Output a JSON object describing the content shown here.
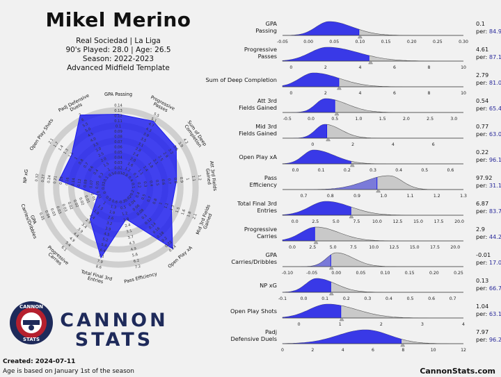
{
  "header": {
    "name": "Mikel Merino",
    "club": "Real Sociedad | La Liga",
    "played": "90's Played: 28.0 | Age: 26.5",
    "season": "Season: 2022-2023",
    "template": "Advanced Midfield Template"
  },
  "brand": {
    "line1": "CANNON",
    "line2": "STATS",
    "logo_top": "CANNON",
    "logo_bottom": "STATS"
  },
  "footer": {
    "created": "Created: 2024-07-11",
    "age_note": "Age is based on January 1st of the season",
    "site": "CannonStats.com"
  },
  "colors": {
    "player_fill": "#1a1aee",
    "dist_grey": "#c9c9c9",
    "per_text": "#2a2a9a",
    "ring": "#cfcfcf",
    "brand_navy": "#1e2a5a",
    "brand_red": "#b5202e"
  },
  "chart_data": [
    {
      "type": "radar",
      "axes": [
        "GPA Passing",
        "Progressive Passes",
        "Sum of Deep Completion",
        "Att 3rd Fields Gained",
        "Mid 3rd Fields Gained",
        "Open Play xA",
        "Pass Efficiency",
        "Total Final 3rd Entries",
        "Progressive Carries",
        "GPA Carries/Dribbles",
        "NP xG",
        "Open Play Shots",
        "Padj Defensive Duels"
      ],
      "axis_labels": [
        "GPA Passing",
        "Progressive\nPasses",
        "Sum of Deep\nCompletion",
        "Att 3rd Fields\nGained",
        "Mid 3rd Fields\nGained",
        "Open Play xA",
        "Pass Efficiency",
        "Total Final 3rd\nEntries",
        "Progressive\nCarries",
        "GPA\nCarries/Dribbles",
        "NP xG",
        "Open Play Shots",
        "Padj Defensive\nDuels"
      ],
      "percentiles": [
        84.9,
        87.1,
        81.0,
        65.4,
        63.0,
        96.1,
        31.1,
        83.7,
        44.2,
        17.0,
        66.7,
        63.1,
        96.2
      ],
      "ticks": [
        [
          "0.01",
          "0.02",
          "0.03",
          "0.04",
          "0.05",
          "0.06",
          "0.07",
          "0.08",
          "0.09",
          "0.1",
          "0.11",
          "0.12",
          "0.13",
          "0.14"
        ],
        [
          "0.8",
          "1.2",
          "1.6",
          "2.0",
          "2.4",
          "2.8",
          "3.1",
          "3.5",
          "3.9",
          "4.3",
          "4.7",
          "5.1",
          "5.5"
        ],
        [
          "0.4",
          "0.7",
          "1.1",
          "1.4",
          "1.8",
          "2.1",
          "2.5",
          "2.9",
          "3.2",
          "3.6",
          "3.9",
          "4.2"
        ],
        [
          "0.1",
          "0.2",
          "0.3",
          "0.4",
          "0.5",
          "0.6",
          "0.7",
          "0.8",
          "0.9",
          "1",
          "1.1",
          "1.2"
        ],
        [
          "0.2",
          "0.4",
          "0.5",
          "0.7",
          "0.8",
          "1",
          "1.1",
          "1.3",
          "1.5",
          "1.6",
          "1.8",
          "2.1"
        ],
        [
          "0.02",
          "0.04",
          "0.06",
          "0.08",
          "0.1",
          "0.12",
          "0.14",
          "0.16",
          "0.18",
          "0.2",
          "0.22",
          "0.24"
        ],
        [
          "-0.1",
          "0.5",
          "1.2",
          "1.8",
          "2.4",
          "3.1",
          "3.7",
          "4.3",
          "4.9",
          "5.6",
          "6.2",
          "7.2"
        ],
        [
          "0.6",
          "1.3",
          "1.9",
          "2.6",
          "3.2",
          "3.9",
          "4.5",
          "5.2",
          "5.8",
          "6.4",
          "7.1",
          "7.9",
          "8.6"
        ],
        [
          "0.5",
          "1",
          "1.5",
          "1.9",
          "2.4",
          "2.9",
          "3.4",
          "3.9",
          "4.4",
          "4.9",
          "5.4",
          "6.1"
        ],
        [
          "0",
          "0.01",
          "0.01",
          "0.01",
          "0.02",
          "0.02",
          "0.02",
          "0.03",
          "0.03",
          "0.03",
          "0.04",
          "0.05"
        ],
        [
          "0.02",
          "0.05",
          "0.07",
          "0.09",
          "0.12",
          "0.14",
          "0.16",
          "0.19",
          "0.21",
          "0.24",
          "0.27",
          "0.32"
        ],
        [
          "0.1",
          "0.3",
          "0.4",
          "0.6",
          "0.7",
          "0.8",
          "1",
          "1.1",
          "1.3",
          "1.4",
          "1.7",
          "2.1"
        ],
        [
          "0.5",
          "1",
          "1.5",
          "2.0",
          "2.5",
          "3.0",
          "3.5",
          "4.0",
          "4.5",
          "5.0",
          "5.5",
          "6",
          "7"
        ]
      ]
    },
    {
      "type": "area",
      "metrics": [
        {
          "label": "GPA\nPassing",
          "value": "0.1",
          "per": "per: 84.9",
          "xmin": -0.05,
          "xmax": 0.3,
          "ticks": [
            "-0.05",
            "0.00",
            "0.05",
            "0.10",
            "0.15",
            "0.20",
            "0.25",
            "0.30"
          ],
          "tickvals": [
            -0.05,
            0,
            0.05,
            0.1,
            0.15,
            0.2,
            0.25,
            0.3
          ],
          "mode": 0.04,
          "sl": 0.025,
          "sr": 0.045,
          "marker": 0.1
        },
        {
          "label": "Progressive\nPasses",
          "value": "4.61",
          "per": "per: 87.1",
          "xmin": -0.5,
          "xmax": 10,
          "ticks": [
            "0",
            "2",
            "4",
            "6",
            "8",
            "10"
          ],
          "tickvals": [
            0,
            2,
            4,
            6,
            8,
            10
          ],
          "mode": 2.1,
          "sl": 1.0,
          "sr": 1.8,
          "marker": 4.61
        },
        {
          "label": "Sum of Deep Completion",
          "value": "2.79",
          "per": "per: 81.0",
          "xmin": -0.5,
          "xmax": 10,
          "ticks": [
            "0",
            "2",
            "4",
            "6",
            "8",
            "10"
          ],
          "tickvals": [
            0,
            2,
            4,
            6,
            8,
            10
          ],
          "mode": 1.3,
          "sl": 0.8,
          "sr": 1.5,
          "marker": 2.79
        },
        {
          "label": "Att 3rd\nFields Gained",
          "value": "0.54",
          "per": "per: 65.4",
          "xmin": -0.6,
          "xmax": 3.2,
          "ticks": [
            "-0.5",
            "0.0",
            "0.5",
            "1.0",
            "1.5",
            "2.0",
            "2.5",
            "3.0"
          ],
          "tickvals": [
            -0.5,
            0,
            0.5,
            1,
            1.5,
            2,
            2.5,
            3
          ],
          "mode": 0.3,
          "sl": 0.2,
          "sr": 0.45,
          "marker": 0.54
        },
        {
          "label": "Mid 3rd\nFields Gained",
          "value": "0.77",
          "per": "per: 63.0",
          "xmin": -1.5,
          "xmax": 7.5,
          "ticks": [
            "0",
            "2",
            "4",
            "6"
          ],
          "tickvals": [
            0,
            2,
            4,
            6
          ],
          "mode": 0.6,
          "sl": 0.45,
          "sr": 0.8,
          "marker": 0.77
        },
        {
          "label": "Open Play xA",
          "value": "0.22",
          "per": "per: 96.1",
          "xmin": -0.05,
          "xmax": 0.65,
          "ticks": [
            "0.0",
            "0.1",
            "0.2",
            "0.3",
            "0.4",
            "0.5",
            "0.6"
          ],
          "tickvals": [
            0,
            0.1,
            0.2,
            0.3,
            0.4,
            0.5,
            0.6
          ],
          "mode": 0.07,
          "sl": 0.04,
          "sr": 0.08,
          "marker": 0.22
        },
        {
          "label": "Pass\nEfficiency",
          "value": "97.92",
          "per": "per: 31.1",
          "xmin": 0.62,
          "xmax": 1.3,
          "ticks": [
            "0.7",
            "0.8",
            "0.9",
            "1.0",
            "1.1",
            "1.2",
            "1.3"
          ],
          "tickvals": [
            0.7,
            0.8,
            0.9,
            1,
            1.1,
            1.2,
            1.3
          ],
          "mode": 1.02,
          "sl": 0.09,
          "sr": 0.05,
          "marker": 0.98
        },
        {
          "label": "Total Final 3rd\nEntries",
          "value": "6.87",
          "per": "per: 83.7",
          "xmin": -1.5,
          "xmax": 20.5,
          "ticks": [
            "0.0",
            "2.5",
            "5.0",
            "7.5",
            "10.0",
            "12.5",
            "15.0",
            "17.5",
            "20.0"
          ],
          "tickvals": [
            0,
            2.5,
            5,
            7.5,
            10,
            12.5,
            15,
            17.5,
            20
          ],
          "mode": 3.8,
          "sl": 2.0,
          "sr": 3.0,
          "marker": 6.87
        },
        {
          "label": "Progressive\nCarries",
          "value": "2.9",
          "per": "per: 44.2",
          "xmin": -1.2,
          "xmax": 21,
          "ticks": [
            "0.0",
            "2.5",
            "5.0",
            "7.5",
            "10.0",
            "12.5",
            "15.0",
            "17.5",
            "20.0"
          ],
          "tickvals": [
            0,
            2.5,
            5,
            7.5,
            10,
            12.5,
            15,
            17.5,
            20
          ],
          "mode": 2.9,
          "sl": 1.8,
          "sr": 2.8,
          "marker": 2.9
        },
        {
          "label": "GPA\nCarries/Dribbles",
          "value": "-0.01",
          "per": "per: 17.0",
          "xmin": -0.11,
          "xmax": 0.26,
          "ticks": [
            "-0.10",
            "-0.05",
            "0.00",
            "0.05",
            "0.10",
            "0.15",
            "0.20",
            "0.25"
          ],
          "tickvals": [
            -0.1,
            -0.05,
            0,
            0.05,
            0.1,
            0.15,
            0.2,
            0.25
          ],
          "mode": 0.0,
          "sl": 0.02,
          "sr": 0.035,
          "marker": -0.01
        },
        {
          "label": "NP xG",
          "value": "0.13",
          "per": "per: 66.7",
          "xmin": -0.1,
          "xmax": 0.75,
          "ticks": [
            "-0.1",
            "0.0",
            "0.1",
            "0.2",
            "0.3",
            "0.4",
            "0.5",
            "0.6",
            "0.7"
          ],
          "tickvals": [
            -0.1,
            0,
            0.1,
            0.2,
            0.3,
            0.4,
            0.5,
            0.6,
            0.7
          ],
          "mode": 0.06,
          "sl": 0.05,
          "sr": 0.09,
          "marker": 0.13
        },
        {
          "label": "Open Play Shots",
          "value": "1.04",
          "per": "per: 63.1",
          "xmin": -0.4,
          "xmax": 4,
          "ticks": [
            "0",
            "1",
            "2",
            "3",
            "4"
          ],
          "tickvals": [
            0,
            1,
            2,
            3,
            4
          ],
          "mode": 0.7,
          "sl": 0.45,
          "sr": 0.7,
          "marker": 1.04
        },
        {
          "label": "Padj\nDefensive Duels",
          "value": "7.97",
          "per": "per: 96.2",
          "xmin": 0,
          "xmax": 12,
          "ticks": [
            "0",
            "2",
            "4",
            "6",
            "8",
            "10",
            "12"
          ],
          "tickvals": [
            0,
            2,
            4,
            6,
            8,
            10,
            12
          ],
          "mode": 5.5,
          "sl": 1.8,
          "sr": 1.6,
          "marker": 7.97
        }
      ]
    }
  ]
}
